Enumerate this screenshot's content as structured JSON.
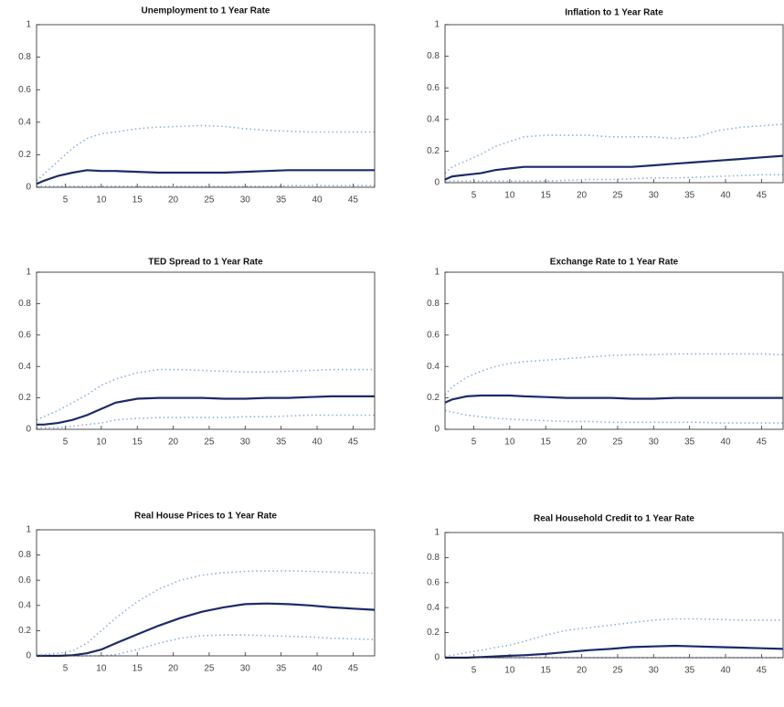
{
  "chart_data": [
    {
      "type": "line",
      "title": "Unemployment to 1 Year Rate",
      "x": [
        1,
        2,
        4,
        6,
        8,
        10,
        12,
        15,
        18,
        21,
        24,
        27,
        30,
        33,
        36,
        39,
        42,
        45,
        48
      ],
      "xlim": [
        1,
        48
      ],
      "ylim": [
        0,
        1
      ],
      "xticks": [
        5,
        10,
        15,
        20,
        25,
        30,
        35,
        40,
        45
      ],
      "yticks": [
        0,
        0.2,
        0.4,
        0.6,
        0.8,
        1
      ],
      "series": [
        {
          "color": "#8fb0dc",
          "dashed": true,
          "values": [
            0.005,
            0.005,
            0.005,
            0.005,
            0.005,
            0.005,
            0.005,
            0.005,
            0.005,
            0.005,
            0.005,
            0.005,
            0.005,
            0.005,
            0.01,
            0.01,
            0.01,
            0.01,
            0.01
          ]
        },
        {
          "color": "#1b2a6b",
          "dashed": false,
          "values": [
            0.02,
            0.04,
            0.07,
            0.09,
            0.105,
            0.1,
            0.1,
            0.095,
            0.09,
            0.09,
            0.09,
            0.09,
            0.095,
            0.1,
            0.105,
            0.105,
            0.105,
            0.105,
            0.105
          ]
        },
        {
          "color": "#8fb0dc",
          "dashed": true,
          "values": [
            0.04,
            0.08,
            0.16,
            0.24,
            0.3,
            0.33,
            0.34,
            0.36,
            0.37,
            0.375,
            0.38,
            0.375,
            0.36,
            0.35,
            0.345,
            0.34,
            0.34,
            0.34,
            0.34
          ]
        }
      ]
    },
    {
      "type": "line",
      "title": "Inflation to 1 Year Rate",
      "x": [
        1,
        2,
        4,
        6,
        8,
        10,
        12,
        15,
        18,
        21,
        24,
        27,
        30,
        33,
        36,
        39,
        42,
        45,
        48
      ],
      "xlim": [
        1,
        48
      ],
      "ylim": [
        0,
        1
      ],
      "xticks": [
        5,
        10,
        15,
        20,
        25,
        30,
        35,
        40,
        45
      ],
      "yticks": [
        0,
        0.2,
        0.4,
        0.6,
        0.8,
        1
      ],
      "series": [
        {
          "color": "#8fb0dc",
          "dashed": true,
          "values": [
            0.01,
            0.01,
            0.01,
            0.01,
            0.01,
            0.01,
            0.01,
            0.01,
            0.015,
            0.02,
            0.02,
            0.025,
            0.03,
            0.03,
            0.035,
            0.04,
            0.045,
            0.05,
            0.05
          ]
        },
        {
          "color": "#1b2a6b",
          "dashed": false,
          "values": [
            0.02,
            0.04,
            0.05,
            0.06,
            0.08,
            0.09,
            0.1,
            0.1,
            0.1,
            0.1,
            0.1,
            0.1,
            0.11,
            0.12,
            0.13,
            0.14,
            0.15,
            0.16,
            0.17
          ]
        },
        {
          "color": "#8fb0dc",
          "dashed": true,
          "values": [
            0.06,
            0.1,
            0.14,
            0.18,
            0.23,
            0.26,
            0.29,
            0.3,
            0.3,
            0.3,
            0.29,
            0.29,
            0.29,
            0.28,
            0.29,
            0.33,
            0.35,
            0.36,
            0.37
          ]
        }
      ]
    },
    {
      "type": "line",
      "title": "TED Spread to 1 Year Rate",
      "x": [
        1,
        2,
        4,
        6,
        8,
        10,
        12,
        15,
        18,
        21,
        24,
        27,
        30,
        33,
        36,
        39,
        42,
        45,
        48
      ],
      "xlim": [
        1,
        48
      ],
      "ylim": [
        0,
        1
      ],
      "xticks": [
        5,
        10,
        15,
        20,
        25,
        30,
        35,
        40,
        45
      ],
      "yticks": [
        0,
        0.2,
        0.4,
        0.6,
        0.8,
        1
      ],
      "series": [
        {
          "color": "#8fb0dc",
          "dashed": true,
          "values": [
            0.01,
            0.01,
            0.01,
            0.02,
            0.03,
            0.04,
            0.06,
            0.07,
            0.075,
            0.075,
            0.075,
            0.075,
            0.08,
            0.08,
            0.085,
            0.09,
            0.09,
            0.09,
            0.09
          ]
        },
        {
          "color": "#1b2a6b",
          "dashed": false,
          "values": [
            0.03,
            0.03,
            0.04,
            0.06,
            0.09,
            0.13,
            0.17,
            0.195,
            0.2,
            0.2,
            0.2,
            0.195,
            0.195,
            0.2,
            0.2,
            0.205,
            0.21,
            0.21,
            0.21
          ]
        },
        {
          "color": "#8fb0dc",
          "dashed": true,
          "values": [
            0.06,
            0.08,
            0.12,
            0.17,
            0.22,
            0.28,
            0.32,
            0.36,
            0.38,
            0.38,
            0.375,
            0.37,
            0.365,
            0.365,
            0.37,
            0.375,
            0.38,
            0.38,
            0.38
          ]
        }
      ]
    },
    {
      "type": "line",
      "title": "Exchange Rate to 1 Year Rate",
      "x": [
        1,
        2,
        4,
        6,
        8,
        10,
        12,
        15,
        18,
        21,
        24,
        27,
        30,
        33,
        36,
        39,
        42,
        45,
        48
      ],
      "xlim": [
        1,
        48
      ],
      "ylim": [
        0,
        1
      ],
      "xticks": [
        5,
        10,
        15,
        20,
        25,
        30,
        35,
        40,
        45
      ],
      "yticks": [
        0,
        0.2,
        0.4,
        0.6,
        0.8,
        1
      ],
      "series": [
        {
          "color": "#8fb0dc",
          "dashed": true,
          "values": [
            0.12,
            0.11,
            0.09,
            0.08,
            0.07,
            0.065,
            0.06,
            0.055,
            0.05,
            0.05,
            0.045,
            0.045,
            0.045,
            0.045,
            0.045,
            0.04,
            0.04,
            0.04,
            0.04
          ]
        },
        {
          "color": "#1b2a6b",
          "dashed": false,
          "values": [
            0.17,
            0.19,
            0.21,
            0.215,
            0.215,
            0.215,
            0.21,
            0.205,
            0.2,
            0.2,
            0.2,
            0.195,
            0.195,
            0.2,
            0.2,
            0.2,
            0.2,
            0.2,
            0.2
          ]
        },
        {
          "color": "#8fb0dc",
          "dashed": true,
          "values": [
            0.22,
            0.27,
            0.33,
            0.37,
            0.4,
            0.42,
            0.43,
            0.44,
            0.45,
            0.46,
            0.47,
            0.475,
            0.475,
            0.48,
            0.48,
            0.48,
            0.48,
            0.48,
            0.475
          ]
        }
      ]
    },
    {
      "type": "line",
      "title": "Real House Prices to 1 Year Rate",
      "x": [
        1,
        2,
        4,
        6,
        8,
        10,
        12,
        15,
        18,
        21,
        24,
        27,
        30,
        33,
        36,
        39,
        42,
        45,
        48
      ],
      "xlim": [
        1,
        48
      ],
      "ylim": [
        0,
        1
      ],
      "xticks": [
        5,
        10,
        15,
        20,
        25,
        30,
        35,
        40,
        45
      ],
      "yticks": [
        0,
        0.2,
        0.4,
        0.6,
        0.8,
        1
      ],
      "series": [
        {
          "color": "#8fb0dc",
          "dashed": true,
          "values": [
            0,
            0,
            0,
            0,
            0,
            0,
            0.01,
            0.05,
            0.1,
            0.14,
            0.16,
            0.165,
            0.165,
            0.16,
            0.155,
            0.15,
            0.14,
            0.135,
            0.13
          ]
        },
        {
          "color": "#1b2a6b",
          "dashed": false,
          "values": [
            0,
            0,
            0,
            0.005,
            0.02,
            0.05,
            0.1,
            0.17,
            0.24,
            0.3,
            0.35,
            0.385,
            0.41,
            0.415,
            0.41,
            0.4,
            0.385,
            0.375,
            0.365
          ]
        },
        {
          "color": "#8fb0dc",
          "dashed": true,
          "values": [
            0.01,
            0.01,
            0.02,
            0.04,
            0.1,
            0.2,
            0.3,
            0.43,
            0.53,
            0.6,
            0.64,
            0.66,
            0.67,
            0.675,
            0.675,
            0.67,
            0.665,
            0.66,
            0.655
          ]
        }
      ]
    },
    {
      "type": "line",
      "title": "Real Household Credit to 1 Year Rate",
      "x": [
        1,
        2,
        4,
        6,
        8,
        10,
        12,
        15,
        18,
        21,
        24,
        27,
        30,
        33,
        36,
        39,
        42,
        45,
        48
      ],
      "xlim": [
        1,
        48
      ],
      "ylim": [
        0,
        1
      ],
      "xticks": [
        5,
        10,
        15,
        20,
        25,
        30,
        35,
        40,
        45
      ],
      "yticks": [
        0,
        0.2,
        0.4,
        0.6,
        0.8,
        1
      ],
      "series": [
        {
          "color": "#8fb0dc",
          "dashed": true,
          "values": [
            0,
            0,
            0,
            0,
            0,
            0,
            0,
            0,
            0,
            0,
            0,
            0,
            0,
            0,
            0,
            0,
            0,
            0,
            0
          ]
        },
        {
          "color": "#1b2a6b",
          "dashed": false,
          "values": [
            0,
            0,
            0,
            0.005,
            0.01,
            0.015,
            0.02,
            0.03,
            0.045,
            0.06,
            0.07,
            0.085,
            0.09,
            0.095,
            0.09,
            0.085,
            0.08,
            0.075,
            0.07
          ]
        },
        {
          "color": "#8fb0dc",
          "dashed": true,
          "values": [
            0.01,
            0.02,
            0.04,
            0.06,
            0.08,
            0.1,
            0.13,
            0.18,
            0.22,
            0.24,
            0.26,
            0.28,
            0.3,
            0.31,
            0.31,
            0.305,
            0.3,
            0.3,
            0.3
          ]
        }
      ]
    }
  ]
}
